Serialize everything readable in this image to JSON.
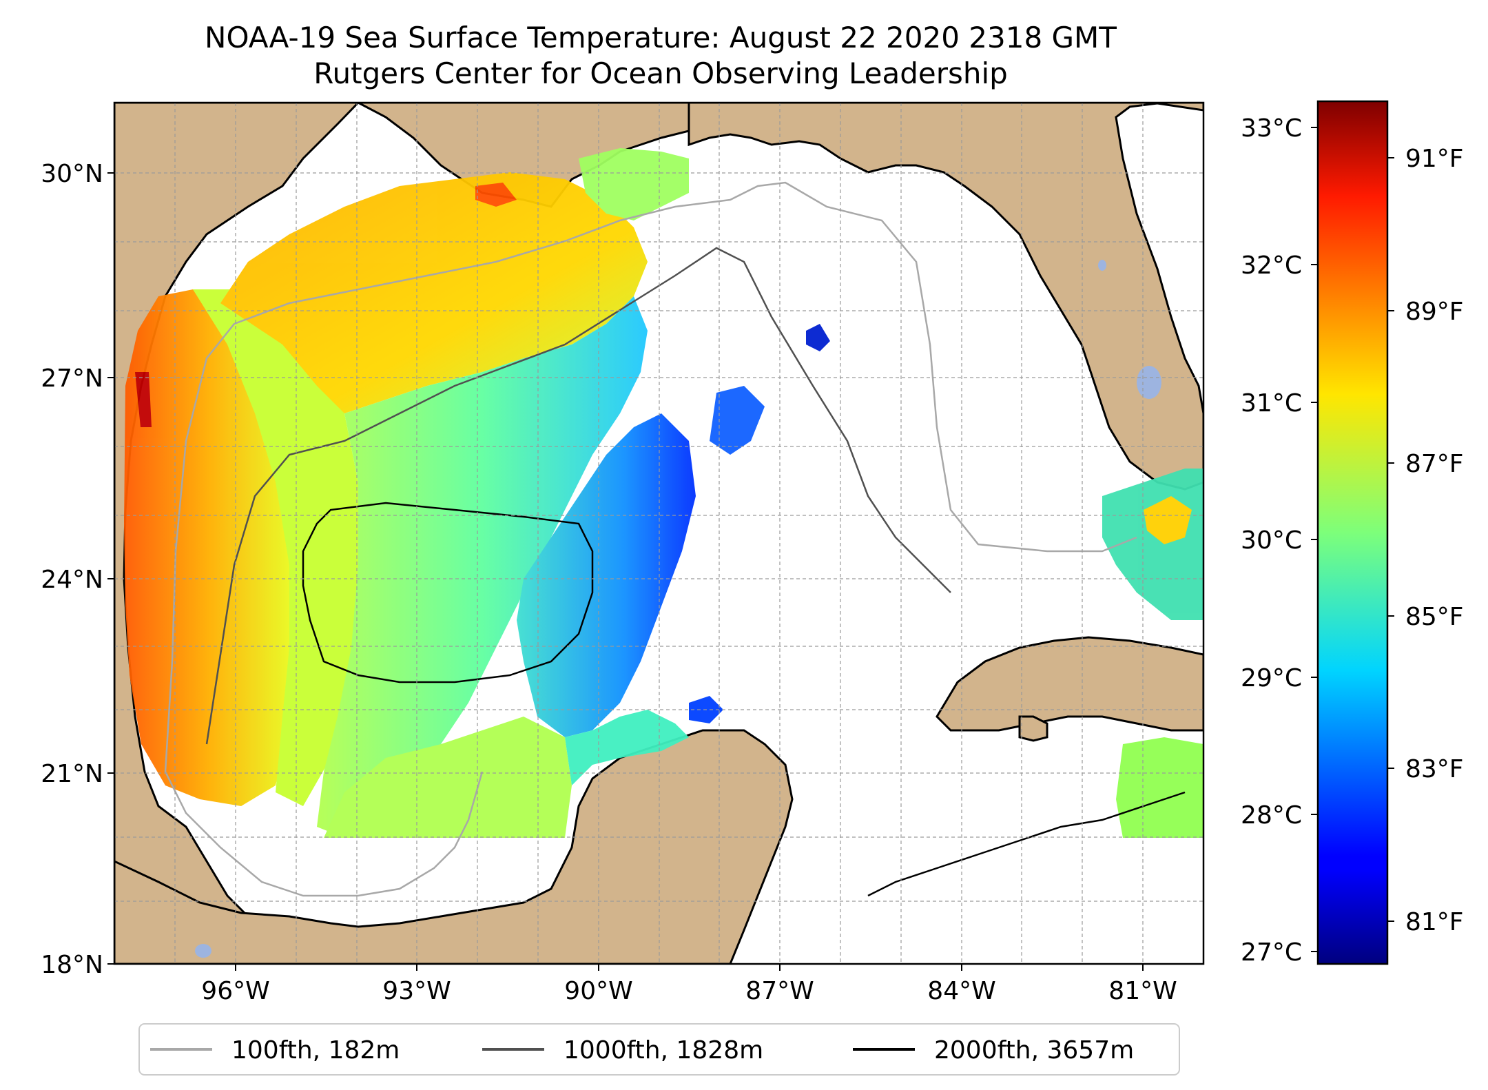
{
  "title": {
    "line1": "NOAA-19 Sea Surface Temperature: August 22 2020 2318 GMT",
    "line2": "Rutgers Center for Ocean Observing Leadership"
  },
  "map": {
    "extent": {
      "lon_min": -98.3,
      "lon_max": -80.3,
      "lat_min": 18,
      "lat_max": 31
    },
    "lat_ticks": [
      {
        "value": 30,
        "label": "30°N"
      },
      {
        "value": 27,
        "label": "27°N"
      },
      {
        "value": 24,
        "label": "24°N"
      },
      {
        "value": 21,
        "label": "21°N"
      },
      {
        "value": 18,
        "label": "18°N"
      }
    ],
    "lon_ticks": [
      {
        "value": -96,
        "label": "96°W"
      },
      {
        "value": -93,
        "label": "93°W"
      },
      {
        "value": -90,
        "label": "90°W"
      },
      {
        "value": -87,
        "label": "87°W"
      },
      {
        "value": -84,
        "label": "84°W"
      },
      {
        "value": -81,
        "label": "81°W"
      }
    ],
    "gridlines": true,
    "land_color": "#D2B48C",
    "water_body_color": "#9DB4E0",
    "no_data_color": "#FFFFFF"
  },
  "legend": {
    "placement": "bottom-center",
    "items": [
      {
        "label": "100fth, 182m",
        "color": "#A8A8A8"
      },
      {
        "label": "1000fth, 1828m",
        "color": "#505050"
      },
      {
        "label": "2000fth, 3657m",
        "color": "#000000"
      }
    ]
  },
  "colorbar": {
    "colormap": "jet",
    "celsius_range": [
      26.9,
      33.2
    ],
    "celsius_ticks": [
      {
        "value": 27,
        "label": "27°C"
      },
      {
        "value": 28,
        "label": "28°C"
      },
      {
        "value": 29,
        "label": "29°C"
      },
      {
        "value": 30,
        "label": "30°C"
      },
      {
        "value": 31,
        "label": "31°C"
      },
      {
        "value": 32,
        "label": "32°C"
      },
      {
        "value": 33,
        "label": "33°C"
      }
    ],
    "fahrenheit_ticks": [
      {
        "value": 81,
        "label": "81°F"
      },
      {
        "value": 83,
        "label": "83°F"
      },
      {
        "value": 85,
        "label": "85°F"
      },
      {
        "value": 87,
        "label": "87°F"
      },
      {
        "value": 89,
        "label": "89°F"
      },
      {
        "value": 91,
        "label": "91°F"
      }
    ]
  }
}
